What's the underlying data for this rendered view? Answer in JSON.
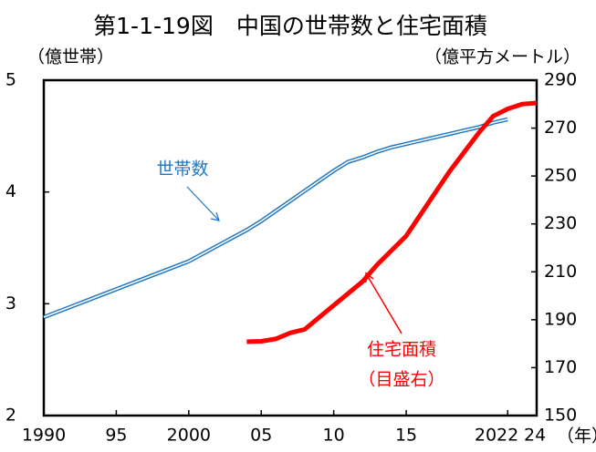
{
  "chart_data": {
    "type": "line",
    "title": "第1-1-19図　中国の世帯数と住宅面積",
    "y_label": "（億世帯）",
    "y2_label": "（億平方メートル）",
    "x_label": "（年）",
    "xlim": [
      1990,
      2024
    ],
    "xticks": [
      {
        "value": 1990,
        "label": "1990"
      },
      {
        "value": 1995,
        "label": "95"
      },
      {
        "value": 2000,
        "label": "2000"
      },
      {
        "value": 2005,
        "label": "05"
      },
      {
        "value": 2010,
        "label": "10"
      },
      {
        "value": 2015,
        "label": "15"
      },
      {
        "value": 2022,
        "label": "2022"
      },
      {
        "value": 2024,
        "label": "24"
      }
    ],
    "ylim": [
      2,
      5
    ],
    "yticks": [
      2,
      3,
      4,
      5
    ],
    "y2lim": [
      150,
      290
    ],
    "y2ticks": [
      150,
      170,
      190,
      210,
      230,
      250,
      270,
      290
    ],
    "series": [
      {
        "name": "世帯数",
        "color": "#1f77c4",
        "x": [
          1990,
          1991,
          1992,
          1993,
          1994,
          1995,
          1996,
          1997,
          1998,
          1999,
          2000,
          2001,
          2002,
          2003,
          2004,
          2005,
          2006,
          2007,
          2008,
          2009,
          2010,
          2011,
          2012,
          2013,
          2014,
          2015,
          2016,
          2017,
          2018,
          2019,
          2020,
          2021,
          2022
        ],
        "values": [
          2.88,
          2.93,
          2.98,
          3.03,
          3.08,
          3.13,
          3.18,
          3.23,
          3.28,
          3.33,
          3.38,
          3.45,
          3.52,
          3.59,
          3.66,
          3.74,
          3.83,
          3.92,
          4.01,
          4.1,
          4.19,
          4.27,
          4.31,
          4.36,
          4.4,
          4.43,
          4.46,
          4.49,
          4.52,
          4.55,
          4.58,
          4.62,
          4.65
        ]
      },
      {
        "name": "住宅面積",
        "name_note": "（目盛右）",
        "color": "#ff0000",
        "axis": "y2",
        "x": [
          2004,
          2005,
          2006,
          2007,
          2008,
          2009,
          2010,
          2011,
          2012,
          2013,
          2014,
          2015,
          2016,
          2017,
          2018,
          2019,
          2020,
          2021,
          2022,
          2023,
          2024
        ],
        "values": [
          180.8,
          181,
          182,
          184.5,
          186,
          191,
          196,
          201,
          206,
          213,
          219,
          225,
          234,
          243,
          252,
          260,
          268,
          275,
          278,
          280,
          280.5
        ]
      }
    ]
  }
}
